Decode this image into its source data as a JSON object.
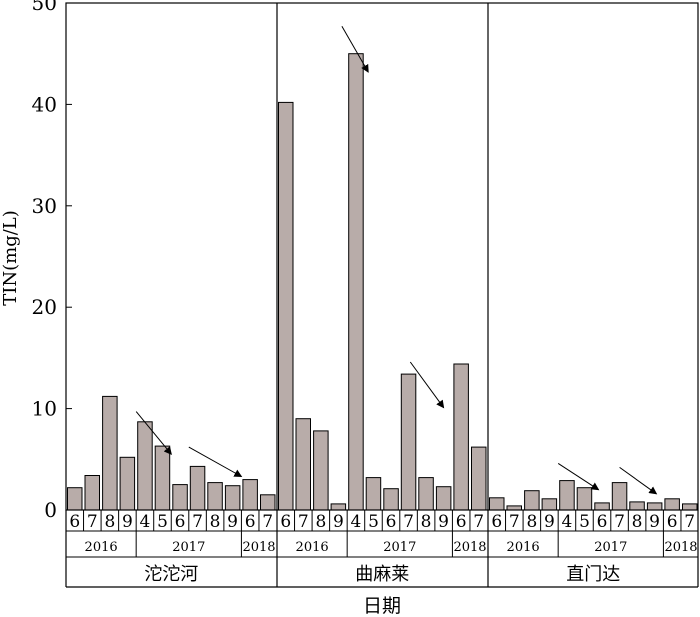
{
  "chart_data": {
    "type": "bar",
    "ylabel": "TIN(mg/L)",
    "xlabel": "日期",
    "ylim": [
      0,
      50
    ],
    "yticks": [
      0,
      10,
      20,
      30,
      40,
      50
    ],
    "bar_color": "#b8aca9",
    "groups": [
      {
        "name": "沱沱河",
        "months": [
          "6",
          "7",
          "8",
          "9",
          "4",
          "5",
          "6",
          "7",
          "8",
          "9",
          "6",
          "7"
        ],
        "years": [
          {
            "label": "2016",
            "count": 4
          },
          {
            "label": "2017",
            "count": 6
          },
          {
            "label": "2018",
            "count": 2
          }
        ],
        "values": [
          2.2,
          3.4,
          11.2,
          5.2,
          8.7,
          6.3,
          2.5,
          4.3,
          2.7,
          2.4,
          3.0,
          1.5
        ],
        "arrows": [
          {
            "from": [
              4,
              9.7
            ],
            "to": [
              6,
              5.5
            ]
          },
          {
            "from": [
              7,
              6.2
            ],
            "to": [
              10,
              3.3
            ]
          }
        ]
      },
      {
        "name": "曲麻莱",
        "months": [
          "6",
          "7",
          "8",
          "9",
          "4",
          "5",
          "6",
          "7",
          "8",
          "9",
          "6",
          "7"
        ],
        "years": [
          {
            "label": "2016",
            "count": 4
          },
          {
            "label": "2017",
            "count": 6
          },
          {
            "label": "2018",
            "count": 2
          }
        ],
        "values": [
          40.2,
          9.0,
          7.8,
          0.6,
          45.0,
          3.2,
          2.1,
          13.4,
          3.2,
          2.3,
          14.4,
          6.2
        ],
        "arrows": [
          {
            "from": [
              3.7,
              47.7
            ],
            "to": [
              5.2,
              43.2
            ]
          },
          {
            "from": [
              7.6,
              14.6
            ],
            "to": [
              9.5,
              10.1
            ]
          }
        ]
      },
      {
        "name": "直门达",
        "months": [
          "6",
          "7",
          "8",
          "9",
          "4",
          "5",
          "6",
          "7",
          "8",
          "9",
          "6",
          "7"
        ],
        "years": [
          {
            "label": "2016",
            "count": 4
          },
          {
            "label": "2017",
            "count": 6
          },
          {
            "label": "2018",
            "count": 2
          }
        ],
        "values": [
          1.2,
          0.4,
          1.9,
          1.1,
          2.9,
          2.2,
          0.7,
          2.7,
          0.8,
          0.7,
          1.1,
          0.6
        ],
        "arrows": [
          {
            "from": [
              4,
              4.6
            ],
            "to": [
              6.3,
              2.0
            ]
          },
          {
            "from": [
              7.5,
              4.2
            ],
            "to": [
              9.6,
              1.6
            ]
          }
        ]
      }
    ]
  }
}
